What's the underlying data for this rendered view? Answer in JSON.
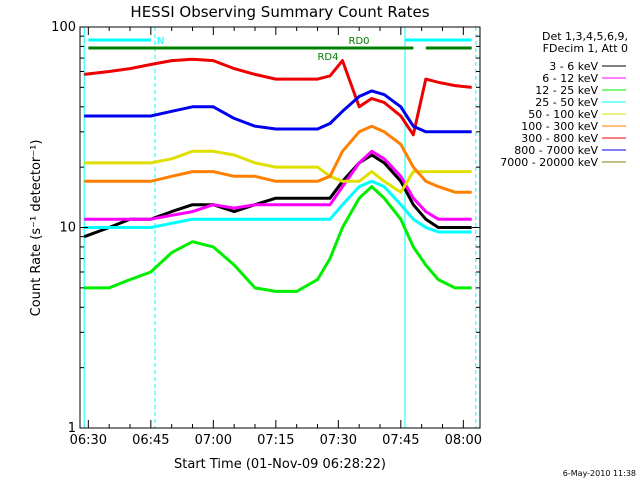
{
  "chart_data": {
    "type": "line",
    "title": "HESSI Observing Summary Count Rates",
    "xlabel": "Start Time (01-Nov-09 06:28:22)",
    "ylabel": "Count Rate (s⁻¹ detector⁻¹)",
    "y_scale": "log",
    "ylim": [
      1,
      100
    ],
    "xlim": [
      "06:28",
      "08:04"
    ],
    "x_ticks": [
      "06:30",
      "06:45",
      "07:00",
      "07:15",
      "07:30",
      "07:45",
      "08:00"
    ],
    "y_ticks": [
      "1",
      "10",
      "100"
    ],
    "legend_header": [
      "Det 1,3,4,5,6,9,",
      "FDecim 1, Att 0"
    ],
    "legend_position": "right",
    "x": [
      "06:29",
      "06:35",
      "06:40",
      "06:45",
      "06:50",
      "06:55",
      "07:00",
      "07:05",
      "07:10",
      "07:15",
      "07:20",
      "07:25",
      "07:28",
      "07:31",
      "07:35",
      "07:38",
      "07:41",
      "07:45",
      "07:48",
      "07:51",
      "07:54",
      "07:58",
      "08:02"
    ],
    "series": [
      {
        "name": "3 - 6 keV",
        "color": "#000000",
        "values": [
          9,
          10,
          11,
          11,
          12,
          13,
          13,
          12,
          13,
          14,
          14,
          14,
          14,
          17,
          21,
          23,
          21,
          17,
          13,
          11,
          10,
          10,
          10
        ]
      },
      {
        "name": "6 - 12 keV",
        "color": "#ff00ff",
        "values": [
          11,
          11,
          11,
          11,
          11.5,
          12,
          13,
          12.5,
          13,
          13,
          13,
          13,
          13,
          16,
          21,
          24,
          22,
          18,
          14,
          12,
          11,
          11,
          11
        ]
      },
      {
        "name": "12 - 25 keV",
        "color": "#00ee00",
        "values": [
          5,
          5,
          5.5,
          6,
          7.5,
          8.5,
          8,
          6.5,
          5,
          4.8,
          4.8,
          5.5,
          7,
          10,
          14,
          16,
          14,
          11,
          8,
          6.5,
          5.5,
          5,
          5
        ]
      },
      {
        "name": "25 - 50 keV",
        "color": "#00ffff",
        "values": [
          10,
          10,
          10,
          10,
          10.5,
          11,
          11,
          11,
          11,
          11,
          11,
          11,
          11,
          13,
          16,
          17,
          16,
          13,
          11,
          10,
          9.5,
          9.5,
          9.5
        ]
      },
      {
        "name": "50 - 100 keV",
        "color": "#e0e000",
        "values": [
          21,
          21,
          21,
          21,
          22,
          24,
          24,
          23,
          21,
          20,
          20,
          20,
          18,
          17,
          17,
          19,
          17,
          15,
          19,
          19,
          19,
          19,
          19
        ]
      },
      {
        "name": "100 - 300 keV",
        "color": "#ff8000",
        "values": [
          17,
          17,
          17,
          17,
          18,
          19,
          19,
          18,
          18,
          17,
          17,
          17,
          18,
          24,
          30,
          32,
          30,
          26,
          20,
          17,
          16,
          15,
          15
        ]
      },
      {
        "name": "300 - 800 keV",
        "color": "#ee0000",
        "values": [
          58,
          60,
          62,
          65,
          68,
          69,
          68,
          62,
          58,
          55,
          55,
          55,
          57,
          68,
          40,
          44,
          42,
          36,
          29,
          55,
          53,
          51,
          50
        ]
      },
      {
        "name": "800 - 7000 keV",
        "color": "#0000ee",
        "values": [
          36,
          36,
          36,
          36,
          38,
          40,
          40,
          35,
          32,
          31,
          31,
          31,
          33,
          38,
          45,
          48,
          46,
          40,
          32,
          30,
          30,
          30,
          30
        ]
      },
      {
        "name": "7000 - 20000 keV",
        "color": "#808000",
        "values": [
          null,
          null,
          null,
          null,
          null,
          null,
          null,
          null,
          null,
          null,
          null,
          null,
          null,
          null,
          null,
          null,
          null,
          null,
          null,
          null,
          null,
          null,
          null
        ]
      }
    ],
    "attenuator_bars": [
      {
        "label": "N",
        "color": "#00ffff",
        "start": "06:30",
        "end": "06:45"
      },
      {
        "label": "",
        "color": "#00ffff",
        "start": "07:46",
        "end": "08:02"
      }
    ],
    "mode_bars": [
      {
        "label": "",
        "color": "#008000",
        "start": "06:30",
        "end": "07:31"
      },
      {
        "label": "RD4",
        "color": "#008000",
        "start": "07:31",
        "end": "07:31"
      },
      {
        "label": "RD0",
        "color": "#008000",
        "start": "07:31",
        "end": "07:48"
      },
      {
        "label": "",
        "color": "#008000",
        "start": "07:51",
        "end": "08:02"
      }
    ],
    "vertical_lines": [
      {
        "time": "06:29",
        "color": "#00ffff",
        "style": "solid"
      },
      {
        "time": "06:46",
        "color": "#00ffff",
        "style": "dashed"
      },
      {
        "time": "07:46",
        "color": "#00ffff",
        "style": "solid"
      },
      {
        "time": "08:03",
        "color": "#00ffff",
        "style": "dashed"
      }
    ],
    "footer": "6-May-2010 11:38"
  }
}
